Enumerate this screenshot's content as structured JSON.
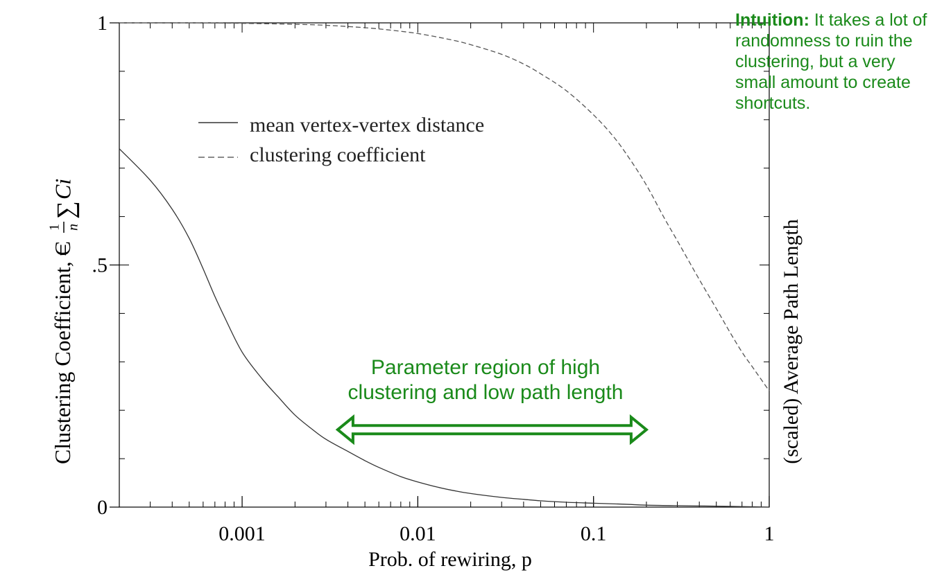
{
  "chart_data": {
    "type": "line",
    "xlabel": "Prob. of rewiring, p",
    "ylabel_left": "Clustering Coefficient, C",
    "ylabel_left_formula": {
      "eq": "=",
      "num": "1",
      "den": "n",
      "sum": "∑",
      "term": "Ci"
    },
    "ylabel_right": "(scaled) Average Path Length",
    "x_scale": "log",
    "xlim": [
      0.0002,
      1
    ],
    "ylim": [
      0,
      1
    ],
    "x_ticks": [
      {
        "value": 0.001,
        "label": "0.001"
      },
      {
        "value": 0.01,
        "label": "0.01"
      },
      {
        "value": 0.1,
        "label": "0.1"
      },
      {
        "value": 1,
        "label": "1"
      }
    ],
    "y_ticks": [
      {
        "value": 0,
        "label": "0"
      },
      {
        "value": 0.5,
        "label": ".5"
      },
      {
        "value": 1,
        "label": "1"
      }
    ],
    "legend_position": "upper-left",
    "series": [
      {
        "name": "mean vertex-vertex distance",
        "style": "solid",
        "color": "#333333",
        "x": [
          0.0002,
          0.0003,
          0.0004,
          0.0005,
          0.0006,
          0.0007,
          0.0008,
          0.001,
          0.0013,
          0.0016,
          0.002,
          0.0025,
          0.003,
          0.004,
          0.005,
          0.006,
          0.008,
          0.01,
          0.013,
          0.016,
          0.02,
          0.03,
          0.04,
          0.05,
          0.07,
          0.1,
          0.15,
          0.2,
          0.3,
          0.5,
          0.7,
          1.0
        ],
        "y": [
          0.74,
          0.675,
          0.615,
          0.555,
          0.492,
          0.435,
          0.39,
          0.32,
          0.265,
          0.228,
          0.19,
          0.161,
          0.14,
          0.115,
          0.096,
          0.082,
          0.063,
          0.052,
          0.041,
          0.034,
          0.028,
          0.02,
          0.016,
          0.013,
          0.01,
          0.008,
          0.006,
          0.004,
          0.003,
          0.002,
          0.001,
          0.0
        ]
      },
      {
        "name": "clustering coefficient",
        "style": "dashed",
        "color": "#555555",
        "x": [
          0.0002,
          0.0005,
          0.001,
          0.002,
          0.003,
          0.005,
          0.007,
          0.01,
          0.015,
          0.02,
          0.03,
          0.04,
          0.05,
          0.07,
          0.1,
          0.13,
          0.16,
          0.2,
          0.25,
          0.3,
          0.4,
          0.5,
          0.6,
          0.7,
          0.8,
          1.0
        ],
        "y": [
          1.0,
          1.0,
          0.999,
          0.997,
          0.995,
          0.99,
          0.985,
          0.978,
          0.966,
          0.955,
          0.935,
          0.915,
          0.895,
          0.86,
          0.81,
          0.765,
          0.72,
          0.665,
          0.6,
          0.55,
          0.47,
          0.41,
          0.36,
          0.32,
          0.29,
          0.24
        ]
      }
    ],
    "annotations": {
      "region_label_line1": "Parameter region of high",
      "region_label_line2": "clustering and low path length",
      "region_arrow": {
        "x_from": 0.0035,
        "x_to": 0.2,
        "y": 0.16,
        "color": "#1a8a1a"
      }
    }
  },
  "intuition": {
    "lead": "Intuition:",
    "text": " It takes a lot of randomness to ruin the clustering, but a very small amount to create shortcuts."
  }
}
